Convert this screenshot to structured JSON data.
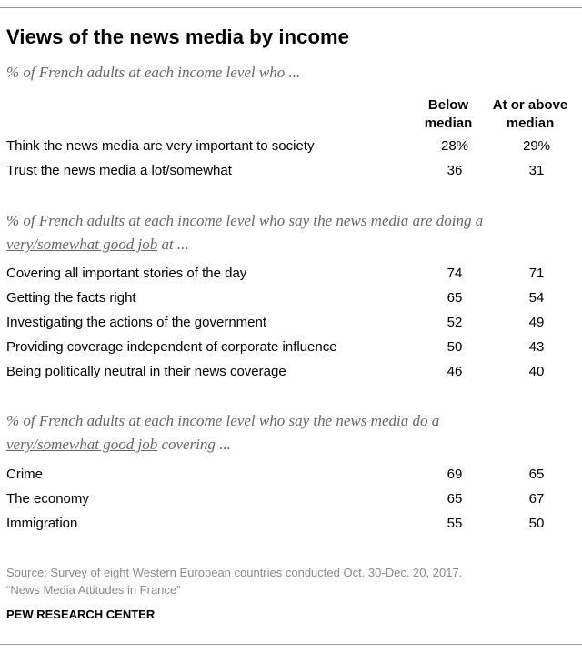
{
  "chart_data": {
    "type": "table",
    "title": "Views of the news media by income",
    "columns": [
      "Below median",
      "At or above median"
    ],
    "sections": [
      {
        "subtitle": "% of French adults at each income level who ...",
        "underline": "",
        "subtitle_tail": "",
        "rows": [
          {
            "label": "Think the news media are very important to society",
            "below": "28%",
            "above": "29%"
          },
          {
            "label": "Trust the news media a lot/somewhat",
            "below": "36",
            "above": "31"
          }
        ]
      },
      {
        "subtitle": "% of French adults at each income level who say the news media are doing a",
        "underline": "very/somewhat good job",
        "subtitle_tail": " at ...",
        "rows": [
          {
            "label": "Covering all important stories of the day",
            "below": "74",
            "above": "71"
          },
          {
            "label": "Getting the facts right",
            "below": "65",
            "above": "54"
          },
          {
            "label": "Investigating the actions of the government",
            "below": "52",
            "above": "49"
          },
          {
            "label": "Providing coverage independent of corporate influence",
            "below": "50",
            "above": "43"
          },
          {
            "label": "Being politically neutral in their news coverage",
            "below": "46",
            "above": "40"
          }
        ]
      },
      {
        "subtitle": "% of French adults at each income level who say the news media do a",
        "underline": "very/somewhat good job",
        "subtitle_tail": " covering ...",
        "rows": [
          {
            "label": "Crime",
            "below": "69",
            "above": "65"
          },
          {
            "label": "The economy",
            "below": "65",
            "above": "67"
          },
          {
            "label": "Immigration",
            "below": "55",
            "above": "50"
          }
        ]
      }
    ]
  },
  "header": {
    "col1_line1": "Below",
    "col1_line2": "median",
    "col2_line1": "At or above",
    "col2_line2": "median"
  },
  "footer": {
    "source_line1": "Source: Survey of eight Western European countries conducted Oct. 30-Dec. 20, 2017.",
    "source_line2": "“News Media Attitudes in France”",
    "credit": "PEW RESEARCH CENTER"
  }
}
